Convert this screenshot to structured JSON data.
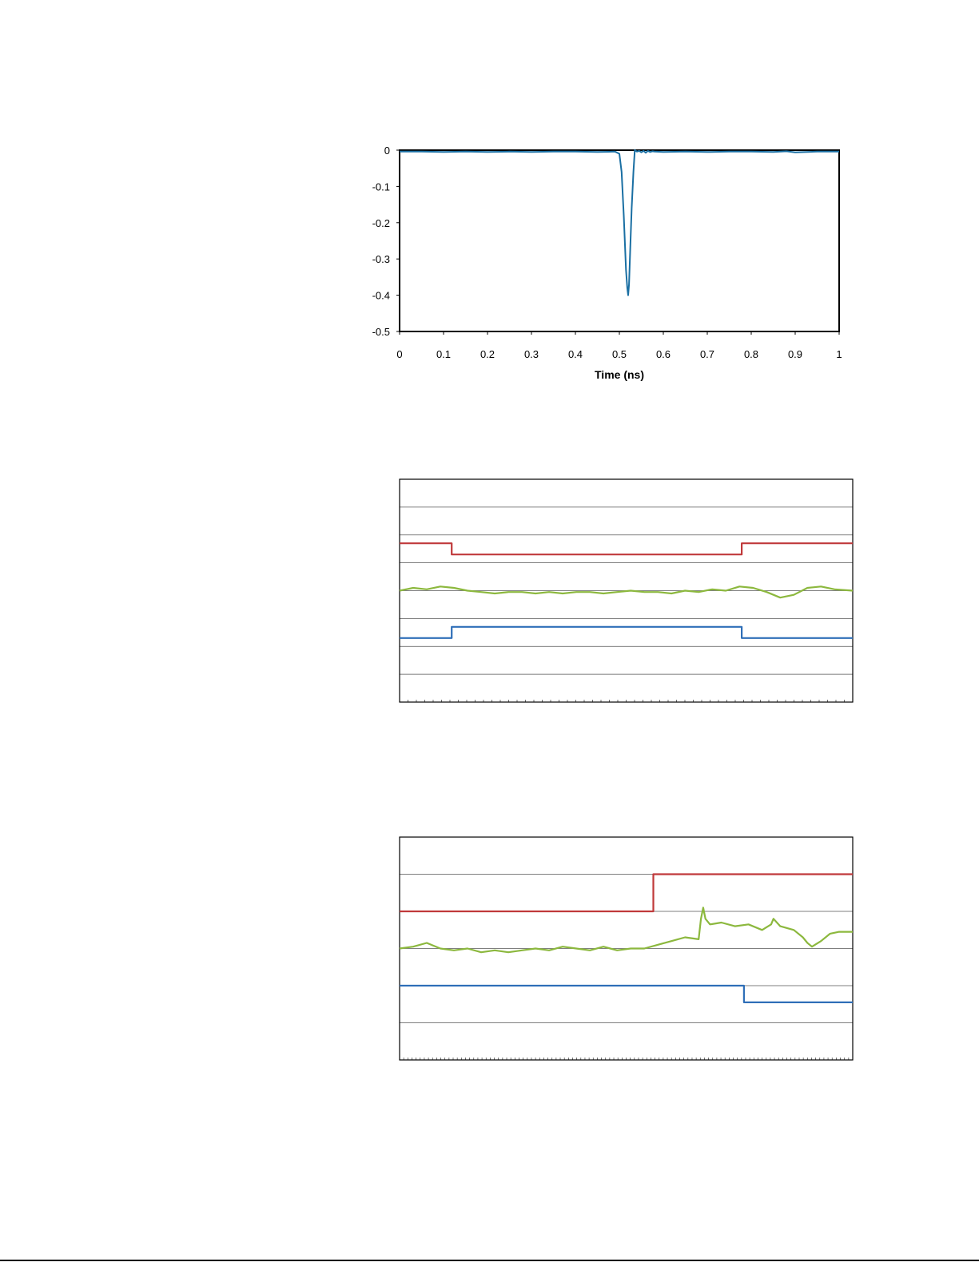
{
  "charts": {
    "chart_data": [
      {
        "type": "line",
        "title": "",
        "xlabel": "Time (ns)",
        "ylabel": "",
        "xlim": [
          0,
          1
        ],
        "ylim": [
          -0.5,
          0
        ],
        "x_ticks": [
          "0",
          "0.1",
          "0.2",
          "0.3",
          "0.4",
          "0.5",
          "0.6",
          "0.7",
          "0.8",
          "0.9",
          "1"
        ],
        "y_ticks": [
          "0",
          "-0.1",
          "-0.2",
          "-0.3",
          "-0.4",
          "-0.5"
        ],
        "grid": false,
        "legend": "none",
        "series": [
          {
            "color": "#1a6fa3",
            "points": [
              [
                0.0,
                -0.004
              ],
              [
                0.05,
                -0.004
              ],
              [
                0.1,
                -0.005
              ],
              [
                0.15,
                -0.004
              ],
              [
                0.2,
                -0.005
              ],
              [
                0.25,
                -0.004
              ],
              [
                0.3,
                -0.005
              ],
              [
                0.35,
                -0.004
              ],
              [
                0.4,
                -0.004
              ],
              [
                0.45,
                -0.005
              ],
              [
                0.49,
                -0.004
              ],
              [
                0.5,
                -0.01
              ],
              [
                0.505,
                -0.06
              ],
              [
                0.51,
                -0.18
              ],
              [
                0.515,
                -0.33
              ],
              [
                0.518,
                -0.38
              ],
              [
                0.52,
                -0.4
              ],
              [
                0.522,
                -0.37
              ],
              [
                0.525,
                -0.26
              ],
              [
                0.528,
                -0.16
              ],
              [
                0.532,
                -0.06
              ],
              [
                0.535,
                0.0
              ],
              [
                0.54,
                -0.004
              ],
              [
                0.545,
                -0.002
              ],
              [
                0.55,
                -0.006
              ],
              [
                0.555,
                -0.002
              ],
              [
                0.56,
                -0.007
              ],
              [
                0.565,
                -0.002
              ],
              [
                0.57,
                -0.005
              ],
              [
                0.575,
                -0.003
              ],
              [
                0.58,
                -0.004
              ],
              [
                0.6,
                -0.005
              ],
              [
                0.65,
                -0.004
              ],
              [
                0.7,
                -0.005
              ],
              [
                0.75,
                -0.004
              ],
              [
                0.8,
                -0.004
              ],
              [
                0.85,
                -0.005
              ],
              [
                0.88,
                -0.003
              ],
              [
                0.9,
                -0.006
              ],
              [
                0.95,
                -0.004
              ],
              [
                1.0,
                -0.004
              ]
            ]
          }
        ]
      },
      {
        "type": "line",
        "title": "",
        "xlabel": "",
        "ylabel": "",
        "xlim": [
          0,
          100
        ],
        "ylim": [
          0,
          8
        ],
        "grid": true,
        "legend": "none",
        "series": [
          {
            "color": "#c0393b",
            "points": [
              [
                0,
                5.7
              ],
              [
                11.5,
                5.7
              ],
              [
                11.5,
                5.3
              ],
              [
                75.5,
                5.3
              ],
              [
                75.5,
                5.7
              ],
              [
                100,
                5.7
              ]
            ]
          },
          {
            "color": "#8cb83e",
            "points": [
              [
                0,
                4.0
              ],
              [
                3,
                4.1
              ],
              [
                6,
                4.05
              ],
              [
                9,
                4.15
              ],
              [
                12,
                4.1
              ],
              [
                15,
                4.0
              ],
              [
                18,
                3.95
              ],
              [
                21,
                3.9
              ],
              [
                24,
                3.95
              ],
              [
                27,
                3.95
              ],
              [
                30,
                3.9
              ],
              [
                33,
                3.95
              ],
              [
                36,
                3.9
              ],
              [
                39,
                3.95
              ],
              [
                42,
                3.95
              ],
              [
                45,
                3.9
              ],
              [
                48,
                3.95
              ],
              [
                51,
                4.0
              ],
              [
                54,
                3.95
              ],
              [
                57,
                3.95
              ],
              [
                60,
                3.9
              ],
              [
                63,
                4.0
              ],
              [
                66,
                3.95
              ],
              [
                69,
                4.05
              ],
              [
                72,
                4.0
              ],
              [
                75,
                4.15
              ],
              [
                78,
                4.1
              ],
              [
                81,
                3.95
              ],
              [
                84,
                3.75
              ],
              [
                87,
                3.85
              ],
              [
                90,
                4.1
              ],
              [
                93,
                4.15
              ],
              [
                96,
                4.05
              ],
              [
                100,
                4.0
              ]
            ]
          },
          {
            "color": "#2f6fb8",
            "points": [
              [
                0,
                2.3
              ],
              [
                11.5,
                2.3
              ],
              [
                11.5,
                2.7
              ],
              [
                75.5,
                2.7
              ],
              [
                75.5,
                2.3
              ],
              [
                100,
                2.3
              ]
            ]
          }
        ]
      },
      {
        "type": "line",
        "title": "",
        "xlabel": "",
        "ylabel": "",
        "xlim": [
          0,
          100
        ],
        "ylim": [
          0,
          6
        ],
        "grid": true,
        "legend": "none",
        "series": [
          {
            "color": "#c0393b",
            "points": [
              [
                0,
                4.0
              ],
              [
                56,
                4.0
              ],
              [
                56,
                5.0
              ],
              [
                100,
                5.0
              ]
            ]
          },
          {
            "color": "#8cb83e",
            "points": [
              [
                0,
                3.0
              ],
              [
                3,
                3.05
              ],
              [
                6,
                3.15
              ],
              [
                9,
                3.0
              ],
              [
                12,
                2.95
              ],
              [
                15,
                3.0
              ],
              [
                18,
                2.9
              ],
              [
                21,
                2.95
              ],
              [
                24,
                2.9
              ],
              [
                27,
                2.95
              ],
              [
                30,
                3.0
              ],
              [
                33,
                2.95
              ],
              [
                36,
                3.05
              ],
              [
                39,
                3.0
              ],
              [
                42,
                2.95
              ],
              [
                45,
                3.05
              ],
              [
                48,
                2.95
              ],
              [
                51,
                3.0
              ],
              [
                54,
                3.0
              ],
              [
                57,
                3.1
              ],
              [
                60,
                3.2
              ],
              [
                63,
                3.3
              ],
              [
                66,
                3.25
              ],
              [
                66.5,
                3.8
              ],
              [
                67,
                4.1
              ],
              [
                67.5,
                3.8
              ],
              [
                68.5,
                3.65
              ],
              [
                71,
                3.7
              ],
              [
                74,
                3.6
              ],
              [
                77,
                3.65
              ],
              [
                80,
                3.5
              ],
              [
                82,
                3.65
              ],
              [
                82.5,
                3.8
              ],
              [
                84,
                3.6
              ],
              [
                87,
                3.5
              ],
              [
                89,
                3.3
              ],
              [
                90,
                3.15
              ],
              [
                91,
                3.05
              ],
              [
                93,
                3.2
              ],
              [
                95,
                3.4
              ],
              [
                97,
                3.45
              ],
              [
                100,
                3.45
              ]
            ]
          },
          {
            "color": "#2f6fb8",
            "points": [
              [
                0,
                2.0
              ],
              [
                76,
                2.0
              ],
              [
                76,
                1.55
              ],
              [
                100,
                1.55
              ]
            ]
          }
        ]
      }
    ]
  }
}
